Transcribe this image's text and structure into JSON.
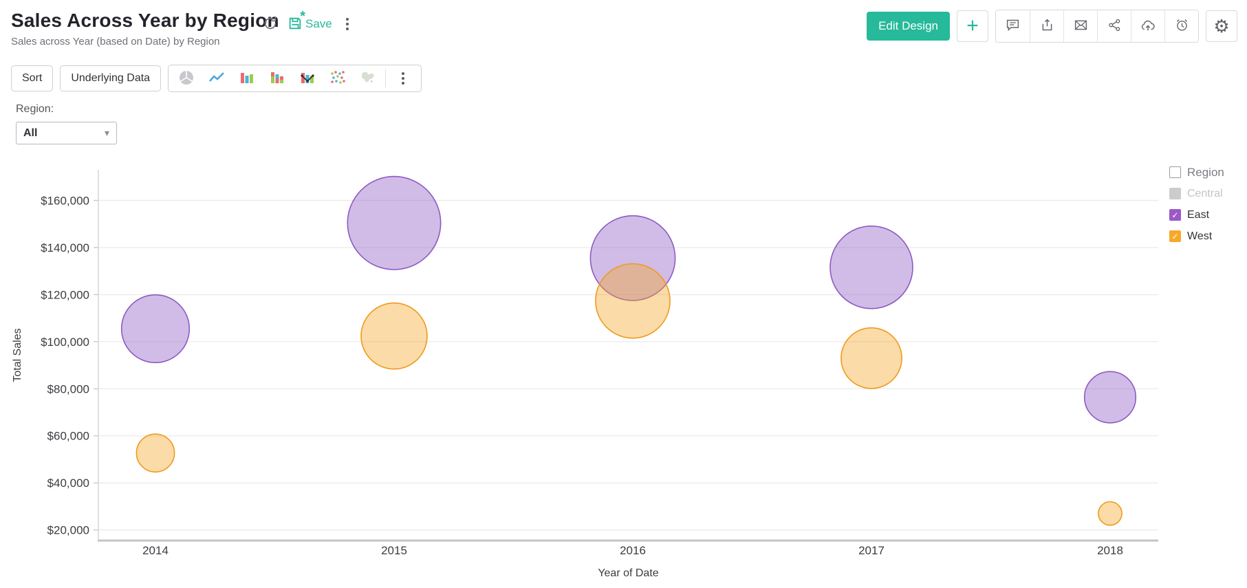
{
  "header": {
    "title": "Sales Across Year by Region",
    "subtitle": "Sales across Year (based on Date) by Region",
    "save_label": "Save",
    "edit_design_label": "Edit Design",
    "plus_label": "+",
    "accent_color": "#26b99a",
    "left_icons": [
      "refresh-icon",
      "save-icon",
      "more-vertical-icon"
    ],
    "right_icons": [
      "comment-icon",
      "export-icon",
      "email-icon",
      "share-icon",
      "cloud-upload-icon",
      "alert-clock-icon",
      "gear-icon"
    ]
  },
  "toolbar": {
    "sort_label": "Sort",
    "underlying_data_label": "Underlying Data",
    "chart_type_icons": [
      "pie-chart-icon",
      "line-chart-icon",
      "bar-chart-icon",
      "stacked-bar-chart-icon",
      "combo-chart-icon",
      "scatter-chart-icon",
      "map-chart-icon",
      "more-vertical-icon"
    ]
  },
  "filter": {
    "label": "Region:",
    "value": "All"
  },
  "legend": {
    "title": "Region",
    "items": [
      {
        "label": "Central",
        "color": "#cccccc",
        "checked": false,
        "muted": true
      },
      {
        "label": "East",
        "color": "#9b59c8",
        "checked": true,
        "muted": false
      },
      {
        "label": "West",
        "color": "#f7a928",
        "checked": true,
        "muted": false
      }
    ]
  },
  "chart_data": {
    "type": "scatter",
    "subtype": "bubble",
    "title": "Sales Across Year by Region",
    "xlabel": "Year of Date",
    "ylabel": "Total Sales",
    "categories": [
      "2014",
      "2015",
      "2016",
      "2017",
      "2018"
    ],
    "series": [
      {
        "name": "East",
        "color": "#9b59c8",
        "values": [
          105500,
          150400,
          135500,
          131600,
          76400
        ]
      },
      {
        "name": "West",
        "color": "#f7a928",
        "values": [
          52700,
          102400,
          117300,
          93000,
          27000
        ]
      }
    ],
    "yticks": [
      20000,
      40000,
      60000,
      80000,
      100000,
      120000,
      140000,
      160000
    ],
    "ytick_format": "$#,##0",
    "ylim": [
      15500,
      173000
    ],
    "grid": "horizontal",
    "legend_position": "right",
    "bubble_size": "proportional to Total Sales"
  }
}
